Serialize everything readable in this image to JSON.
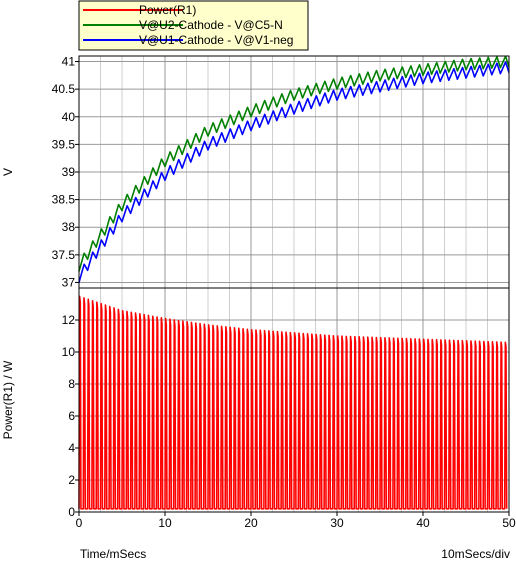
{
  "chart_data": {
    "type": "line",
    "legend_position": "top-left",
    "legend": [
      {
        "name": "Power(R1)",
        "color": "#ff0000"
      },
      {
        "name": "V@U2-Cathode - V@C5-N",
        "color": "#008000"
      },
      {
        "name": "V@U1-Cathode - V@V1-neg",
        "color": "#0000ff"
      }
    ],
    "x_axis": {
      "label": "Time/mSecs",
      "scale_label": "10mSecs/div",
      "range": [
        0,
        50
      ],
      "ticks": [
        "0",
        "10",
        "20",
        "30",
        "40",
        "50"
      ],
      "minor_step": 2.5,
      "grid": true
    },
    "panels": [
      {
        "id": "voltage",
        "ylabel": "V",
        "ylim": [
          36.9,
          41.1
        ],
        "yticks": [
          "37",
          "37.5",
          "38",
          "38.5",
          "39",
          "39.5",
          "40",
          "40.5",
          "41"
        ],
        "series": [
          {
            "name": "V@U2-Cathode - V@C5-N",
            "color": "#008000",
            "ripple_period_ms": 1.0,
            "ripple_amplitude_v": 0.2,
            "envelope": [
              [
                0,
                37.3
              ],
              [
                5,
                38.4
              ],
              [
                10,
                39.2
              ],
              [
                15,
                39.75
              ],
              [
                20,
                40.1
              ],
              [
                25,
                40.4
              ],
              [
                30,
                40.6
              ],
              [
                35,
                40.75
              ],
              [
                40,
                40.85
              ],
              [
                45,
                40.95
              ],
              [
                50,
                41.0
              ]
            ]
          },
          {
            "name": "V@U1-Cathode - V@V1-neg",
            "color": "#0000ff",
            "ripple_period_ms": 1.0,
            "ripple_amplitude_v": 0.2,
            "envelope": [
              [
                0,
                37.1
              ],
              [
                5,
                38.2
              ],
              [
                10,
                38.95
              ],
              [
                15,
                39.5
              ],
              [
                20,
                39.85
              ],
              [
                25,
                40.15
              ],
              [
                30,
                40.4
              ],
              [
                35,
                40.55
              ],
              [
                40,
                40.7
              ],
              [
                45,
                40.8
              ],
              [
                50,
                40.9
              ]
            ]
          }
        ]
      },
      {
        "id": "power",
        "ylabel": "Power(R1) / W",
        "ylim": [
          0,
          14
        ],
        "yticks": [
          "0",
          "2",
          "4",
          "6",
          "8",
          "10",
          "12"
        ],
        "series": [
          {
            "name": "Power(R1)",
            "color": "#ff0000",
            "pulse_period_ms": 0.5,
            "peak_envelope": [
              [
                0,
                13.5
              ],
              [
                5,
                12.6
              ],
              [
                10,
                12.1
              ],
              [
                15,
                11.7
              ],
              [
                20,
                11.4
              ],
              [
                25,
                11.2
              ],
              [
                30,
                11.0
              ],
              [
                35,
                10.9
              ],
              [
                40,
                10.8
              ],
              [
                45,
                10.7
              ],
              [
                50,
                10.6
              ]
            ],
            "min_value": 0.2
          }
        ]
      }
    ]
  }
}
